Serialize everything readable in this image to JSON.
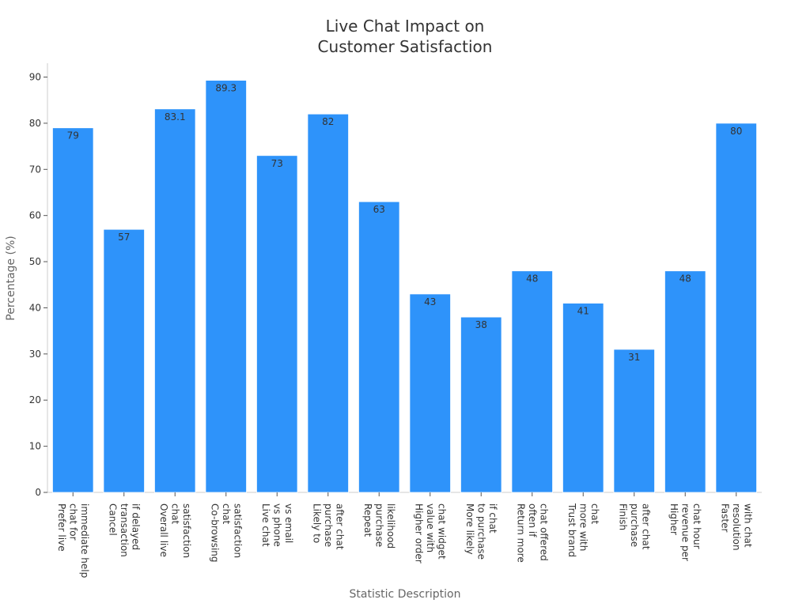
{
  "chart_data": {
    "type": "bar",
    "title_lines": [
      "Live Chat Impact on",
      "Customer Satisfaction"
    ],
    "xlabel": "Statistic Description",
    "ylabel": "Percentage (%)",
    "ylim": [
      0,
      93
    ],
    "yticks": [
      0,
      10,
      20,
      30,
      40,
      50,
      60,
      70,
      80,
      90
    ],
    "grid": false,
    "bar_color": "#2E93FA",
    "categories": [
      [
        "Prefer live",
        "chat for",
        "immediate help"
      ],
      [
        "Cancel",
        "transaction",
        "if delayed"
      ],
      [
        "Overall live",
        "chat",
        "satisfaction"
      ],
      [
        "Co-browsing",
        "chat",
        "satisfaction"
      ],
      [
        "Live chat",
        "vs phone",
        "vs email"
      ],
      [
        "Likely to",
        "purchase",
        "after chat"
      ],
      [
        "Repeat",
        "purchase",
        "likelihood"
      ],
      [
        "Higher order",
        "value with",
        "chat widget"
      ],
      [
        "More likely",
        "to purchase",
        "if chat"
      ],
      [
        "Return more",
        "often if",
        "chat offered"
      ],
      [
        "Trust brand",
        "more with",
        "chat"
      ],
      [
        "Finish",
        "purchase",
        "after chat"
      ],
      [
        "Higher",
        "revenue per",
        "chat hour"
      ],
      [
        "Faster",
        "resolution",
        "with chat"
      ]
    ],
    "values": [
      79,
      57,
      83.1,
      89.3,
      73,
      82,
      63,
      43,
      38,
      48,
      41,
      31,
      48,
      80
    ],
    "value_labels": [
      "79",
      "57",
      "83.1",
      "89.3",
      "73",
      "82",
      "63",
      "43",
      "38",
      "48",
      "41",
      "31",
      "48",
      "80"
    ]
  }
}
